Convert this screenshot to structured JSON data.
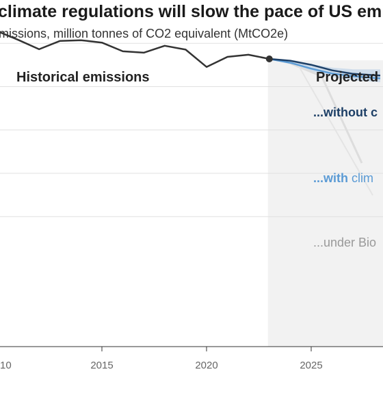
{
  "chart_data": {
    "type": "line",
    "title": "climate regulations will slow the pace of US emi",
    "subtitle": "missions, million tonnes of CO2 equivalent (MtCO2e)",
    "xlabel": "",
    "ylabel": "",
    "x_ticks": [
      "10",
      "2015",
      "2020",
      "2025"
    ],
    "xlim": [
      2010,
      2028.3
    ],
    "ylim": [
      0,
      1
    ],
    "grid": true,
    "annotations": {
      "historical": "Historical emissions",
      "projected": "Projected",
      "without": "...without c",
      "with_label": "...with",
      "with_rest": " clim",
      "under": "...under Bio"
    },
    "colors": {
      "historical": "#333333",
      "without": "#1d3f66",
      "with": "#5b9bd5",
      "band": "#c6d7e8",
      "projection_bg": "#f2f2f2",
      "under_text": "#999999"
    },
    "series": [
      {
        "key": "historical",
        "x": [
          2010,
          2011,
          2012,
          2013,
          2014,
          2015,
          2016,
          2017,
          2018,
          2019,
          2020,
          2021,
          2022,
          2023
        ],
        "values": [
          0.91,
          0.885,
          0.858,
          0.882,
          0.884,
          0.877,
          0.852,
          0.848,
          0.868,
          0.857,
          0.807,
          0.836,
          0.842,
          0.83
        ]
      },
      {
        "key": "without",
        "x": [
          2023,
          2024,
          2025,
          2026,
          2027,
          2028,
          2028.3
        ],
        "values": [
          0.83,
          0.825,
          0.813,
          0.797,
          0.787,
          0.783,
          0.782
        ]
      },
      {
        "key": "with",
        "x": [
          2023,
          2024,
          2025,
          2026,
          2027,
          2028,
          2028.3
        ],
        "values": [
          0.83,
          0.819,
          0.802,
          0.788,
          0.78,
          0.775,
          0.774
        ]
      }
    ],
    "band": {
      "x": [
        2023,
        2024,
        2025,
        2026,
        2027,
        2028,
        2028.3
      ],
      "upper": [
        0.83,
        0.826,
        0.815,
        0.805,
        0.8,
        0.8,
        0.8
      ],
      "lower": [
        0.83,
        0.815,
        0.795,
        0.778,
        0.768,
        0.764,
        0.763
      ]
    },
    "highlight_point": {
      "x": 2023,
      "y": 0.83
    }
  }
}
